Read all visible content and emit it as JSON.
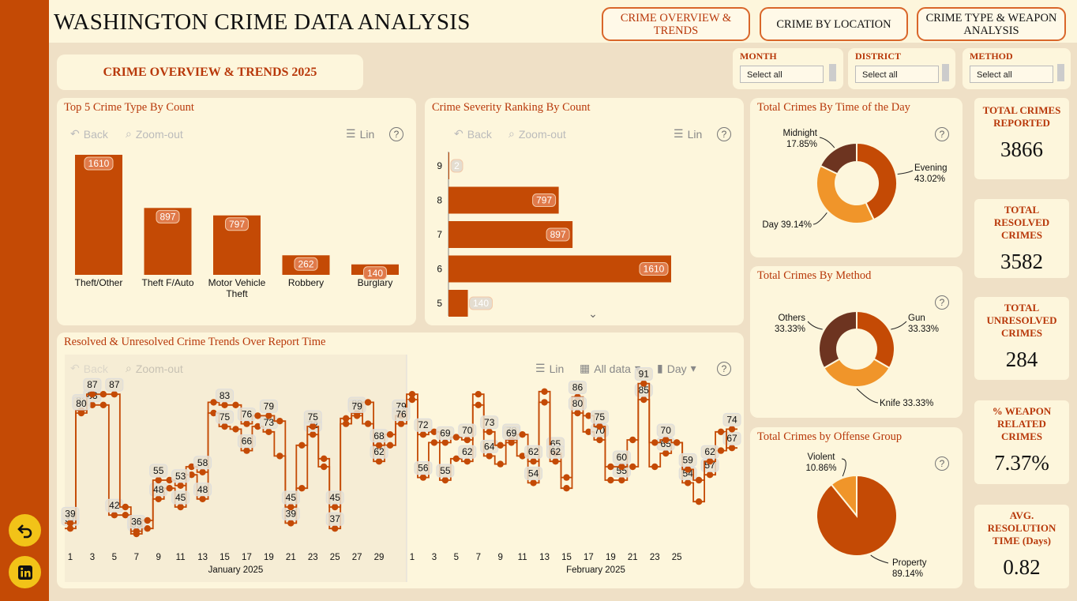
{
  "app_title": "WASHINGTON CRIME DATA ANALYSIS",
  "nav": [
    {
      "label": "CRIME OVERVIEW & TRENDS",
      "active": true
    },
    {
      "label": "CRIME BY LOCATION",
      "active": false
    },
    {
      "label": "CRIME TYPE & WEAPON ANALYSIS",
      "active": false
    }
  ],
  "page_title": "CRIME OVERVIEW & TRENDS 2025",
  "filters": [
    {
      "label": "MONTH",
      "value": "Select all"
    },
    {
      "label": "DISTRICT",
      "value": "Select all"
    },
    {
      "label": "METHOD",
      "value": "Select all"
    }
  ],
  "toolbar": {
    "back": "Back",
    "zoom_out": "Zoom-out",
    "lin": "Lin",
    "all_data": "All data",
    "day": "Day",
    "help": "?"
  },
  "rail_icons": [
    "back-arrow-icon",
    "linkedin-icon"
  ],
  "colors": {
    "accent": "#c44a05",
    "title": "#b8380a",
    "panel": "#fdf6dc",
    "background": "#efe0c6",
    "orange": "#f0952a",
    "brown": "#6d3420"
  },
  "kpis": [
    {
      "label": "TOTAL CRIMES REPORTED",
      "value": "3866"
    },
    {
      "label": "TOTAL RESOLVED CRIMES",
      "value": "3582"
    },
    {
      "label": "TOTAL UNRESOLVED CRIMES",
      "value": "284"
    },
    {
      "label": "% WEAPON RELATED CRIMES",
      "value": "7.37%"
    },
    {
      "label": "AVG. RESOLUTION TIME (Days)",
      "value": "0.82"
    }
  ],
  "chart_data": [
    {
      "id": "top5",
      "type": "bar",
      "title": "Top 5 Crime Type By Count",
      "categories": [
        "Theft/Other",
        "Theft F/Auto",
        "Motor Vehicle Theft",
        "Robbery",
        "Burglary"
      ],
      "values": [
        1610,
        897,
        797,
        262,
        140
      ]
    },
    {
      "id": "severity",
      "type": "bar",
      "orientation": "horizontal",
      "title": "Crime Severity Ranking By Count",
      "categories": [
        "9",
        "8",
        "7",
        "6",
        "5"
      ],
      "values": [
        2,
        797,
        897,
        1610,
        140
      ]
    },
    {
      "id": "time_of_day",
      "type": "pie",
      "donut": true,
      "title": "Total Crimes By Time of the Day",
      "labels": [
        "Evening",
        "Day",
        "Midnight"
      ],
      "values": [
        43.02,
        39.14,
        17.85
      ],
      "value_labels": [
        "43.02%",
        "39.14%",
        "17.85%"
      ],
      "colors": [
        "#c44a05",
        "#f0952a",
        "#6d3420"
      ]
    },
    {
      "id": "method",
      "type": "pie",
      "donut": true,
      "title": "Total Crimes By Method",
      "labels": [
        "Gun",
        "Knife",
        "Others"
      ],
      "values": [
        33.33,
        33.33,
        33.33
      ],
      "value_labels": [
        "33.33%",
        "33.33%",
        "33.33%"
      ],
      "colors": [
        "#c44a05",
        "#f0952a",
        "#6d3420"
      ]
    },
    {
      "id": "offense_group",
      "type": "pie",
      "title": "Total Crimes by Offense Group",
      "labels": [
        "Property",
        "Violent"
      ],
      "values": [
        89.14,
        10.86
      ],
      "value_labels": [
        "89.14%",
        "10.86%"
      ],
      "colors": [
        "#c44a05",
        "#f0952a"
      ]
    },
    {
      "id": "trend",
      "type": "line",
      "step": true,
      "title": "Resolved & Unresolved Crime Trends Over Report Time",
      "months": [
        "January 2025",
        "February 2025"
      ],
      "x_ticks": [
        "1",
        "3",
        "5",
        "7",
        "9",
        "11",
        "13",
        "15",
        "17",
        "19",
        "21",
        "23",
        "25",
        "27",
        "29",
        "1",
        "3",
        "5",
        "7",
        "9",
        "11",
        "13",
        "15",
        "17",
        "19",
        "21",
        "23",
        "25"
      ],
      "ylim": [
        30,
        90
      ],
      "series": [
        {
          "values": [
            37,
            81,
            83,
            83,
            42,
            42,
            35,
            37,
            48,
            52,
            45,
            57,
            48,
            80,
            75,
            74,
            66,
            75,
            73,
            64,
            39,
            68,
            72,
            60,
            37,
            78,
            80,
            76,
            62,
            68,
            79,
            85,
            56,
            69,
            55,
            63,
            62,
            83,
            64,
            61,
            70,
            64,
            54,
            84,
            65,
            52,
            86,
            73,
            70,
            55,
            55,
            60,
            85,
            60,
            65,
            69,
            54,
            47,
            57,
            73,
            67
          ]
        },
        {
          "values": [
            39,
            80,
            87,
            87,
            87,
            45,
            36,
            40,
            55,
            55,
            53,
            60,
            58,
            84,
            83,
            83,
            76,
            79,
            79,
            77,
            45,
            52,
            75,
            63,
            45,
            76,
            79,
            84,
            68,
            72,
            76,
            87,
            72,
            73,
            69,
            71,
            70,
            87,
            73,
            68,
            69,
            72,
            62,
            88,
            62,
            56,
            80,
            79,
            75,
            60,
            60,
            70,
            91,
            69,
            70,
            69,
            59,
            55,
            62,
            66,
            74
          ]
        }
      ]
    }
  ]
}
